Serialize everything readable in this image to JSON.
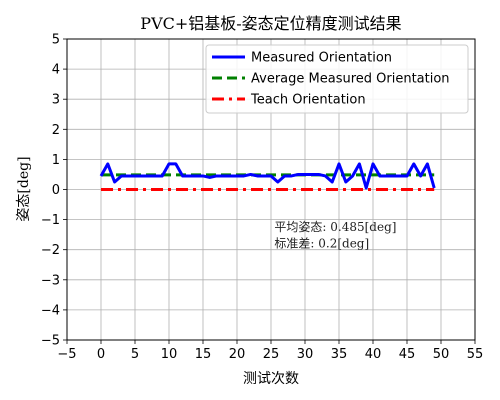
{
  "chart_data": {
    "type": "line",
    "title": "PVC+铝基板-姿态定位精度测试结果",
    "xlabel": "测试次数",
    "ylabel": "姿态[deg]",
    "xlim": [
      -5,
      55
    ],
    "ylim": [
      -5,
      5
    ],
    "xticks": [
      -5,
      0,
      5,
      10,
      15,
      20,
      25,
      30,
      35,
      40,
      45,
      50,
      55
    ],
    "yticks": [
      -5,
      -4,
      -3,
      -2,
      -1,
      0,
      1,
      2,
      3,
      4,
      5
    ],
    "xtick_labels": [
      "−5",
      "0",
      "5",
      "10",
      "15",
      "20",
      "25",
      "30",
      "35",
      "40",
      "45",
      "50",
      "55"
    ],
    "ytick_labels": [
      "−5",
      "−4",
      "−3",
      "−2",
      "−1",
      "0",
      "1",
      "2",
      "3",
      "4",
      "5"
    ],
    "grid": true,
    "legend_position": "top-right",
    "x": [
      0,
      1,
      2,
      3,
      4,
      5,
      6,
      7,
      8,
      9,
      10,
      11,
      12,
      13,
      14,
      15,
      16,
      17,
      18,
      19,
      20,
      21,
      22,
      23,
      24,
      25,
      26,
      27,
      28,
      29,
      30,
      31,
      32,
      33,
      34,
      35,
      36,
      37,
      38,
      39,
      40,
      41,
      42,
      43,
      44,
      45,
      46,
      47,
      48,
      49
    ],
    "series": [
      {
        "name": "Measured Orientation",
        "color": "#0000ff",
        "style": "solid",
        "values": [
          0.45,
          0.85,
          0.25,
          0.45,
          0.45,
          0.45,
          0.45,
          0.45,
          0.45,
          0.45,
          0.85,
          0.85,
          0.45,
          0.45,
          0.45,
          0.45,
          0.4,
          0.45,
          0.45,
          0.45,
          0.45,
          0.45,
          0.5,
          0.45,
          0.45,
          0.45,
          0.25,
          0.45,
          0.45,
          0.5,
          0.5,
          0.5,
          0.5,
          0.45,
          0.25,
          0.85,
          0.25,
          0.45,
          0.85,
          0.05,
          0.85,
          0.45,
          0.45,
          0.45,
          0.45,
          0.45,
          0.85,
          0.45,
          0.85,
          0.05
        ]
      },
      {
        "name": "Average Measured Orientation",
        "color": "#008000",
        "style": "dashed",
        "values": [
          0.485,
          0.485,
          0.485,
          0.485,
          0.485,
          0.485,
          0.485,
          0.485,
          0.485,
          0.485,
          0.485,
          0.485,
          0.485,
          0.485,
          0.485,
          0.485,
          0.485,
          0.485,
          0.485,
          0.485,
          0.485,
          0.485,
          0.485,
          0.485,
          0.485,
          0.485,
          0.485,
          0.485,
          0.485,
          0.485,
          0.485,
          0.485,
          0.485,
          0.485,
          0.485,
          0.485,
          0.485,
          0.485,
          0.485,
          0.485,
          0.485,
          0.485,
          0.485,
          0.485,
          0.485,
          0.485,
          0.485,
          0.485,
          0.485,
          0.485
        ]
      },
      {
        "name": "Teach Orientation",
        "color": "#ff0000",
        "style": "dashdot",
        "values": [
          0,
          0,
          0,
          0,
          0,
          0,
          0,
          0,
          0,
          0,
          0,
          0,
          0,
          0,
          0,
          0,
          0,
          0,
          0,
          0,
          0,
          0,
          0,
          0,
          0,
          0,
          0,
          0,
          0,
          0,
          0,
          0,
          0,
          0,
          0,
          0,
          0,
          0,
          0,
          0,
          0,
          0,
          0,
          0,
          0,
          0,
          0,
          0,
          0,
          0
        ]
      }
    ],
    "annotations": [
      {
        "text": "平均姿态: 0.485[deg]",
        "x": 25.5,
        "y": -1.25
      },
      {
        "text": "标准差: 0.2[deg]",
        "x": 25.5,
        "y": -1.8
      }
    ]
  }
}
